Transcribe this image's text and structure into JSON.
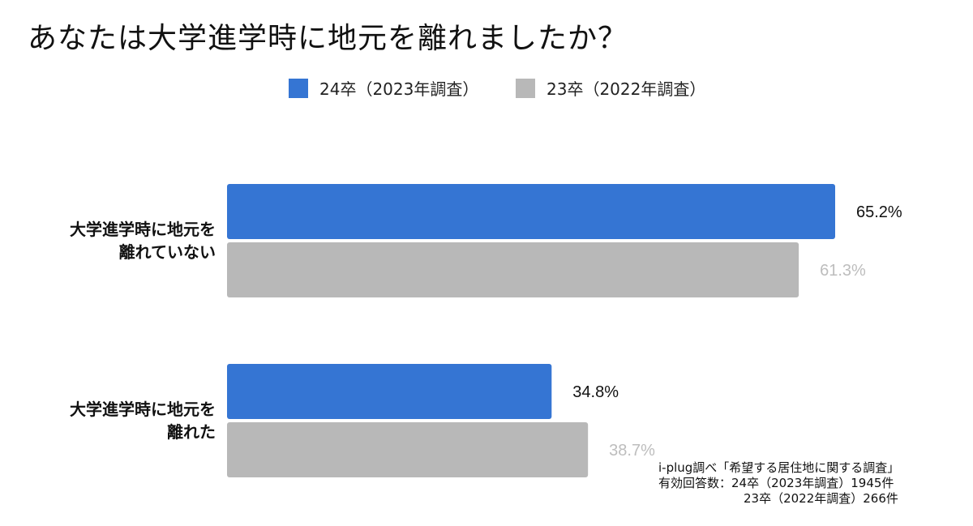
{
  "title": "あなたは大学進学時に地元を離れましたか？",
  "colors": {
    "series_2024": "#3575d3",
    "series_2023": "#b8b8b8",
    "label_2023": "#bdbdbd"
  },
  "chart_data": {
    "type": "bar",
    "orientation": "horizontal",
    "title": "あなたは大学進学時に地元を離れましたか？",
    "categories": [
      [
        "大学進学時に地元を",
        "離れていない"
      ],
      [
        "大学進学時に地元を",
        "離れた"
      ]
    ],
    "series": [
      {
        "name": "24卒（2023年調査）",
        "values": [
          65.2,
          34.8
        ],
        "labels": [
          "65.2%",
          "34.8%"
        ]
      },
      {
        "name": "23卒（2022年調査）",
        "values": [
          61.3,
          38.7
        ],
        "labels": [
          "61.3%",
          "38.7%"
        ]
      }
    ],
    "xlim": [
      0,
      100
    ],
    "unit": "%",
    "legend_position": "top-center",
    "grid": false
  },
  "note": {
    "line1": "i-plug調べ「希望する居住地に関する調査」",
    "line2": "有効回答数：24卒（2023年調査）1945件",
    "line3": "　　　　　　　23卒（2022年調査）266件"
  }
}
